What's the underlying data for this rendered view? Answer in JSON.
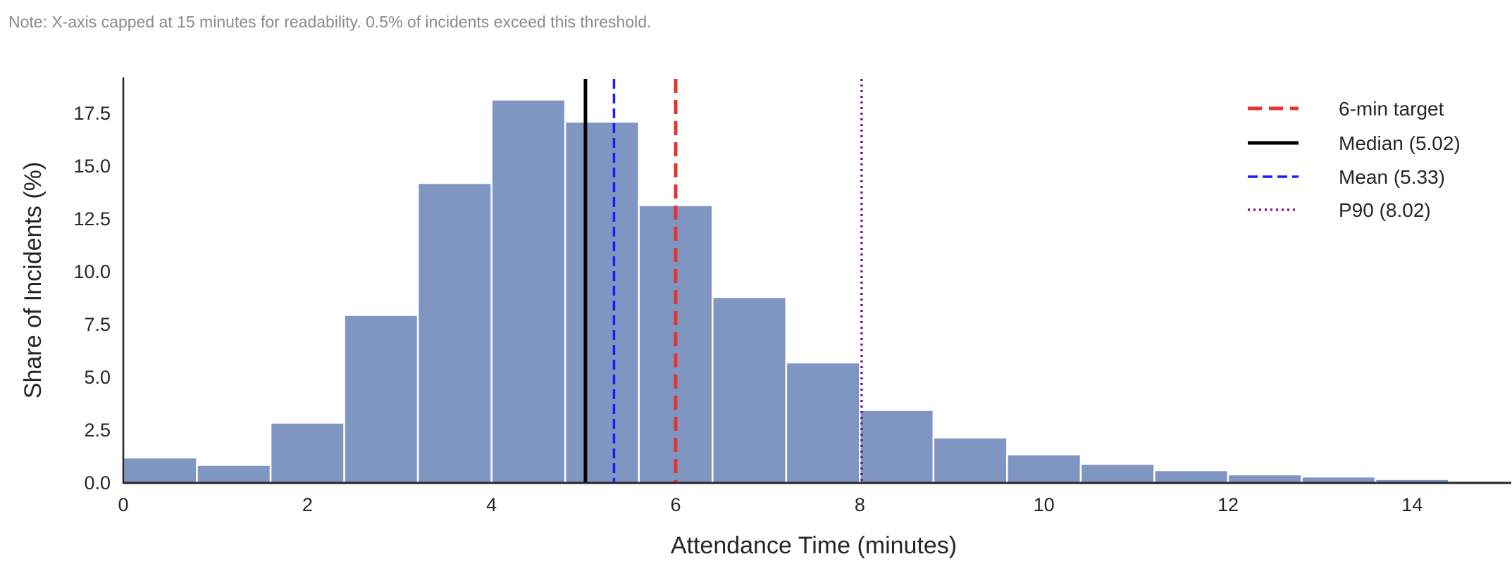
{
  "note": "Note: X-axis capped at 15 minutes for readability. 0.5% of incidents exceed this threshold.",
  "chart_data": {
    "type": "bar",
    "title": "",
    "xlabel": "Attendance Time (minutes)",
    "ylabel": "Share of Incidents (%)",
    "xlim": [
      0,
      15
    ],
    "ylim": [
      0,
      19.2
    ],
    "xticks": [
      "0",
      "2",
      "4",
      "6",
      "8",
      "10",
      "12",
      "14"
    ],
    "yticks": [
      "0.0",
      "2.5",
      "5.0",
      "7.5",
      "10.0",
      "12.5",
      "15.0",
      "17.5"
    ],
    "grid": false,
    "bar_color": "#8096c2",
    "bin_edges": [
      0,
      0.8,
      1.6,
      2.4,
      3.2,
      4.0,
      4.8,
      5.6,
      6.4,
      7.2,
      8.0,
      8.8,
      9.6,
      10.4,
      11.2,
      12.0,
      12.8,
      13.6,
      14.4,
      15.2
    ],
    "values": [
      1.2,
      0.85,
      2.85,
      7.95,
      14.2,
      18.15,
      17.1,
      13.15,
      8.8,
      5.7,
      3.45,
      2.15,
      1.35,
      0.9,
      0.6,
      0.4,
      0.3,
      0.18,
      0.1
    ],
    "reference_lines": [
      {
        "name": "6-min target",
        "x": 6,
        "color": "#e3342f",
        "style": "dashed"
      },
      {
        "name": "Median (5.02)",
        "x": 5.02,
        "color": "#000000",
        "style": "solid"
      },
      {
        "name": "Mean (5.33)",
        "x": 5.33,
        "color": "#1a1aff",
        "style": "dashed"
      },
      {
        "name": "P90 (8.02)",
        "x": 8.02,
        "color": "#7b1a8f",
        "style": "dotted"
      }
    ],
    "legend_position": "top-right"
  }
}
